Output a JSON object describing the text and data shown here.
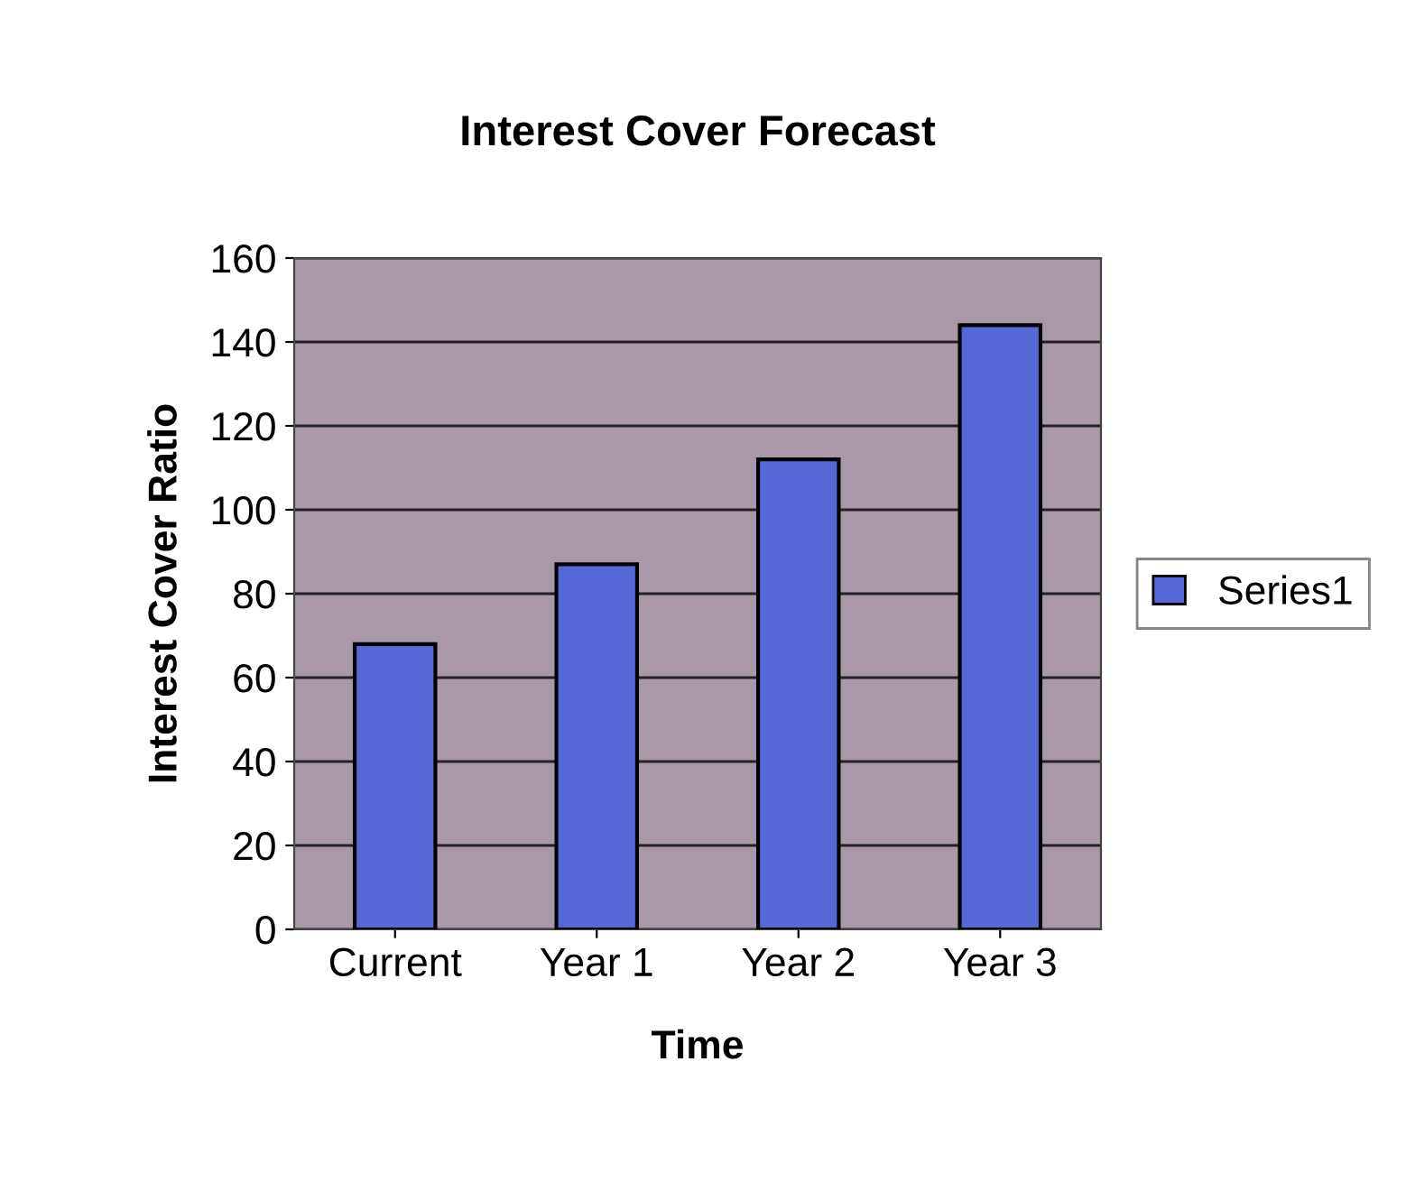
{
  "chart_data": {
    "type": "bar",
    "title": "Interest Cover Forecast",
    "xlabel": "Time",
    "ylabel": "Interest Cover Ratio",
    "categories": [
      "Current",
      "Year 1",
      "Year 2",
      "Year 3"
    ],
    "series": [
      {
        "name": "Series1",
        "color": "#5468d8",
        "values": [
          68,
          87,
          112,
          144
        ]
      }
    ],
    "ylim": [
      0,
      160
    ],
    "yticks": [
      0,
      20,
      40,
      60,
      80,
      100,
      120,
      140,
      160
    ],
    "grid": "y",
    "legend": "right"
  }
}
